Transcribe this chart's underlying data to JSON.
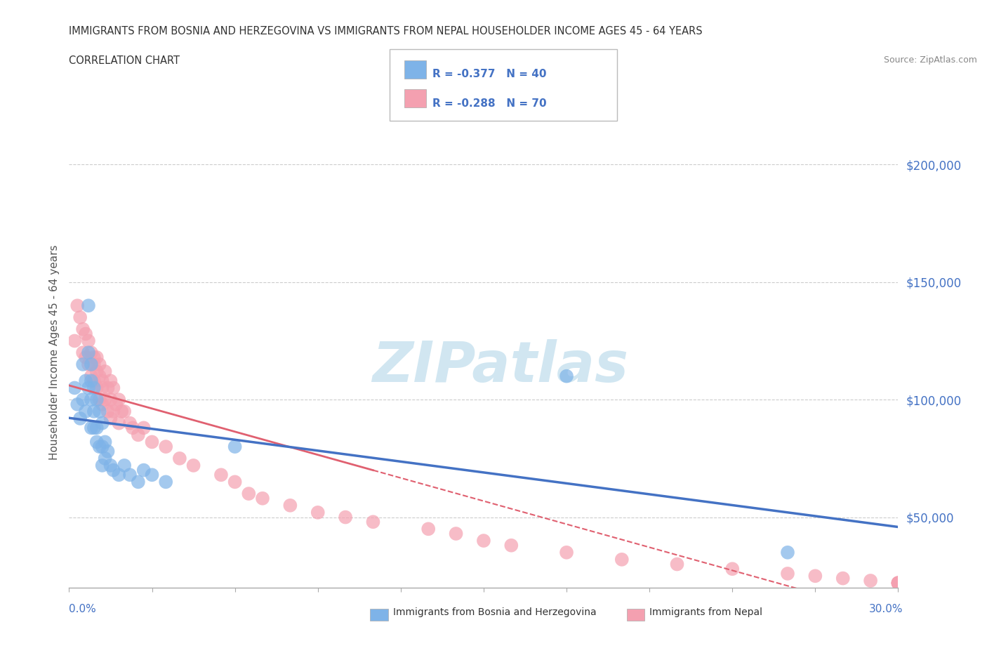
{
  "title_line1": "IMMIGRANTS FROM BOSNIA AND HERZEGOVINA VS IMMIGRANTS FROM NEPAL HOUSEHOLDER INCOME AGES 45 - 64 YEARS",
  "title_line2": "CORRELATION CHART",
  "source": "Source: ZipAtlas.com",
  "ylabel": "Householder Income Ages 45 - 64 years",
  "bosnia_color": "#7eb3e8",
  "nepal_color": "#f4a0b0",
  "bosnia_line_color": "#4472c4",
  "nepal_line_color": "#e06070",
  "watermark_color": "#cce4f0",
  "xlim": [
    0.0,
    0.3
  ],
  "ylim": [
    20000,
    220000
  ],
  "yticks": [
    50000,
    100000,
    150000,
    200000
  ],
  "ytick_labels": [
    "$50,000",
    "$100,000",
    "$150,000",
    "$200,000"
  ],
  "grid_color": "#cccccc",
  "bosnia_scatter_x": [
    0.002,
    0.003,
    0.004,
    0.005,
    0.005,
    0.006,
    0.006,
    0.007,
    0.007,
    0.007,
    0.008,
    0.008,
    0.008,
    0.008,
    0.009,
    0.009,
    0.009,
    0.01,
    0.01,
    0.01,
    0.011,
    0.011,
    0.012,
    0.012,
    0.012,
    0.013,
    0.013,
    0.014,
    0.015,
    0.016,
    0.018,
    0.02,
    0.022,
    0.025,
    0.027,
    0.03,
    0.035,
    0.06,
    0.18,
    0.26
  ],
  "bosnia_scatter_y": [
    105000,
    98000,
    92000,
    115000,
    100000,
    108000,
    95000,
    140000,
    120000,
    105000,
    115000,
    108000,
    100000,
    88000,
    105000,
    95000,
    88000,
    100000,
    88000,
    82000,
    95000,
    80000,
    90000,
    80000,
    72000,
    82000,
    75000,
    78000,
    72000,
    70000,
    68000,
    72000,
    68000,
    65000,
    70000,
    68000,
    65000,
    80000,
    110000,
    35000
  ],
  "nepal_scatter_x": [
    0.002,
    0.003,
    0.004,
    0.005,
    0.005,
    0.006,
    0.006,
    0.007,
    0.007,
    0.008,
    0.008,
    0.009,
    0.009,
    0.009,
    0.01,
    0.01,
    0.01,
    0.011,
    0.011,
    0.011,
    0.012,
    0.012,
    0.012,
    0.013,
    0.013,
    0.014,
    0.014,
    0.015,
    0.015,
    0.015,
    0.016,
    0.016,
    0.017,
    0.018,
    0.018,
    0.019,
    0.02,
    0.022,
    0.023,
    0.025,
    0.027,
    0.03,
    0.035,
    0.04,
    0.045,
    0.055,
    0.06,
    0.065,
    0.07,
    0.08,
    0.09,
    0.1,
    0.11,
    0.13,
    0.14,
    0.15,
    0.16,
    0.18,
    0.2,
    0.22,
    0.24,
    0.26,
    0.27,
    0.28,
    0.29,
    0.3,
    0.3,
    0.3,
    0.3,
    0.3
  ],
  "nepal_scatter_y": [
    125000,
    140000,
    135000,
    120000,
    130000,
    118000,
    128000,
    115000,
    125000,
    120000,
    110000,
    115000,
    108000,
    118000,
    112000,
    105000,
    118000,
    110000,
    100000,
    115000,
    105000,
    98000,
    108000,
    100000,
    112000,
    95000,
    105000,
    100000,
    92000,
    108000,
    95000,
    105000,
    98000,
    90000,
    100000,
    95000,
    95000,
    90000,
    88000,
    85000,
    88000,
    82000,
    80000,
    75000,
    72000,
    68000,
    65000,
    60000,
    58000,
    55000,
    52000,
    50000,
    48000,
    45000,
    43000,
    40000,
    38000,
    35000,
    32000,
    30000,
    28000,
    26000,
    25000,
    24000,
    23000,
    22000,
    22000,
    22000,
    22000,
    22000
  ],
  "nepal_line_x_end": 0.11,
  "legend_text": [
    "R = -0.377   N = 40",
    "R = -0.288   N = 70"
  ]
}
